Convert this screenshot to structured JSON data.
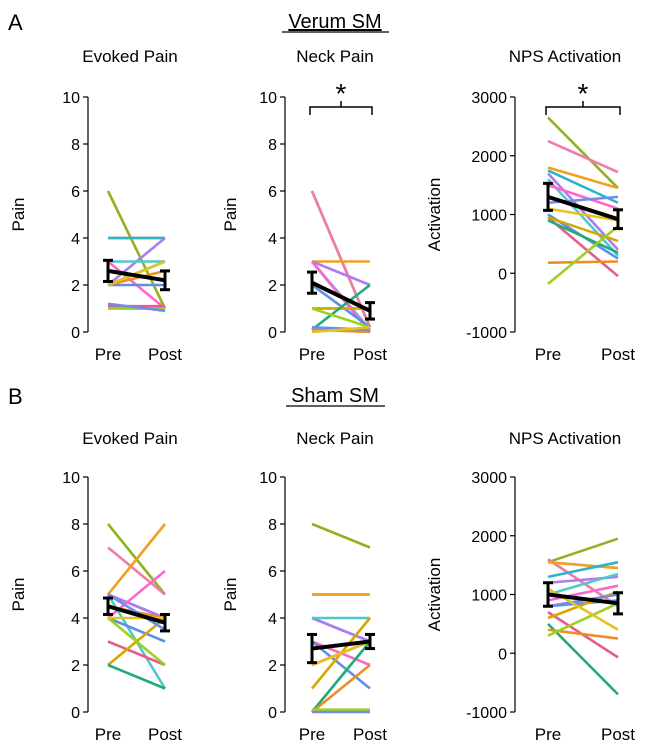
{
  "panels": [
    {
      "letter": "A",
      "group_title": "Verum SM"
    },
    {
      "letter": "B",
      "group_title": "Sham SM"
    }
  ],
  "colors": {
    "mean": "#000000",
    "subjects": [
      "#8fb31f",
      "#f07aa8",
      "#f0a01e",
      "#2ab5c8",
      "#b07af0",
      "#4fc9c9",
      "#ff66cc",
      "#5b8fe8",
      "#e85a8a",
      "#d9a600",
      "#22aa77",
      "#f08c28",
      "#9ad21e",
      "#6f8ce8",
      "#e6c21e"
    ]
  },
  "chart_data": [
    {
      "type": "line",
      "title": "Evoked Pain",
      "ylabel": "Pain",
      "categories": [
        "Pre",
        "Post"
      ],
      "ylim": [
        0,
        10
      ],
      "yticks": [
        0,
        2,
        4,
        6,
        8,
        10
      ],
      "significance": "",
      "mean": [
        2.6,
        2.2
      ],
      "sem": [
        0.45,
        0.4
      ],
      "subjects": [
        [
          6,
          1
        ],
        [
          4,
          4
        ],
        [
          4,
          4
        ],
        [
          4,
          4
        ],
        [
          2,
          4
        ],
        [
          3,
          3
        ],
        [
          3,
          1
        ],
        [
          2,
          2
        ],
        [
          1.1,
          1.1
        ],
        [
          1,
          1
        ],
        [
          2,
          3
        ],
        [
          2,
          2.6
        ],
        [
          1,
          1
        ],
        [
          1.2,
          0.9
        ],
        [
          2,
          3
        ]
      ]
    },
    {
      "type": "line",
      "title": "Neck Pain",
      "ylabel": "Pain",
      "categories": [
        "Pre",
        "Post"
      ],
      "ylim": [
        0,
        10
      ],
      "yticks": [
        0,
        2,
        4,
        6,
        8,
        10
      ],
      "significance": "*",
      "mean": [
        2.1,
        0.9
      ],
      "sem": [
        0.45,
        0.35
      ],
      "subjects": [
        [
          6,
          0.2
        ],
        [
          6,
          0.2
        ],
        [
          3,
          3
        ],
        [
          3,
          0
        ],
        [
          3,
          2
        ],
        [
          3,
          0.1
        ],
        [
          3,
          0
        ],
        [
          2,
          0.2
        ],
        [
          1,
          1
        ],
        [
          1,
          1
        ],
        [
          0.1,
          2
        ],
        [
          0.1,
          0
        ],
        [
          1,
          0.2
        ],
        [
          0.2,
          0.1
        ],
        [
          0,
          0.2
        ]
      ]
    },
    {
      "type": "line",
      "title": "NPS Activation",
      "ylabel": "Activation",
      "categories": [
        "Pre",
        "Post"
      ],
      "ylim": [
        -1000,
        3000
      ],
      "yticks": [
        -1000,
        0,
        1000,
        2000,
        3000
      ],
      "significance": "*",
      "mean": [
        1300,
        920
      ],
      "sem": [
        230,
        160
      ],
      "subjects": [
        [
          2650,
          1450
        ],
        [
          2250,
          1720
        ],
        [
          1800,
          1450
        ],
        [
          1750,
          1200
        ],
        [
          1700,
          400
        ],
        [
          1600,
          300
        ],
        [
          1500,
          1100
        ],
        [
          1000,
          250
        ],
        [
          950,
          -50
        ],
        [
          950,
          550
        ],
        [
          900,
          350
        ],
        [
          180,
          200
        ],
        [
          -180,
          800
        ],
        [
          1200,
          1300
        ],
        [
          1100,
          900
        ]
      ]
    },
    {
      "type": "line",
      "title": "Evoked Pain",
      "ylabel": "Pain",
      "categories": [
        "Pre",
        "Post"
      ],
      "ylim": [
        0,
        10
      ],
      "yticks": [
        0,
        2,
        4,
        6,
        8,
        10
      ],
      "significance": "",
      "mean": [
        4.5,
        3.8
      ],
      "sem": [
        0.35,
        0.35
      ],
      "subjects": [
        [
          8,
          5
        ],
        [
          7,
          5
        ],
        [
          5,
          8
        ],
        [
          5,
          4
        ],
        [
          5,
          4
        ],
        [
          5,
          1
        ],
        [
          4,
          6
        ],
        [
          4,
          3
        ],
        [
          3,
          2
        ],
        [
          2,
          4
        ],
        [
          2,
          1
        ],
        [
          4.5,
          4
        ],
        [
          4,
          2
        ],
        [
          5,
          3.5
        ],
        [
          4,
          4
        ]
      ]
    },
    {
      "type": "line",
      "title": "Neck Pain",
      "ylabel": "Pain",
      "categories": [
        "Pre",
        "Post"
      ],
      "ylim": [
        0,
        10
      ],
      "yticks": [
        0,
        2,
        4,
        6,
        8,
        10
      ],
      "significance": "",
      "mean": [
        2.7,
        3.0
      ],
      "sem": [
        0.6,
        0.3
      ],
      "subjects": [
        [
          8,
          7
        ],
        [
          5,
          5
        ],
        [
          5,
          5
        ],
        [
          4,
          3
        ],
        [
          4,
          3
        ],
        [
          4,
          4
        ],
        [
          3,
          2
        ],
        [
          3,
          1
        ],
        [
          2,
          3
        ],
        [
          1,
          4
        ],
        [
          0,
          3
        ],
        [
          0,
          2
        ],
        [
          0.1,
          0.1
        ],
        [
          0,
          0
        ],
        [
          2,
          3
        ]
      ]
    },
    {
      "type": "line",
      "title": "NPS Activation",
      "ylabel": "Activation",
      "categories": [
        "Pre",
        "Post"
      ],
      "ylim": [
        -1000,
        3000
      ],
      "yticks": [
        -1000,
        0,
        1000,
        2000,
        3000
      ],
      "significance": "",
      "mean": [
        1000,
        850
      ],
      "sem": [
        200,
        180
      ],
      "subjects": [
        [
          1550,
          1950
        ],
        [
          1600,
          800
        ],
        [
          1550,
          1450
        ],
        [
          1300,
          1550
        ],
        [
          1200,
          1300
        ],
        [
          1000,
          1350
        ],
        [
          900,
          1150
        ],
        [
          800,
          900
        ],
        [
          700,
          -70
        ],
        [
          600,
          1050
        ],
        [
          500,
          -700
        ],
        [
          400,
          250
        ],
        [
          300,
          850
        ],
        [
          800,
          1000
        ],
        [
          1100,
          400
        ]
      ]
    }
  ]
}
